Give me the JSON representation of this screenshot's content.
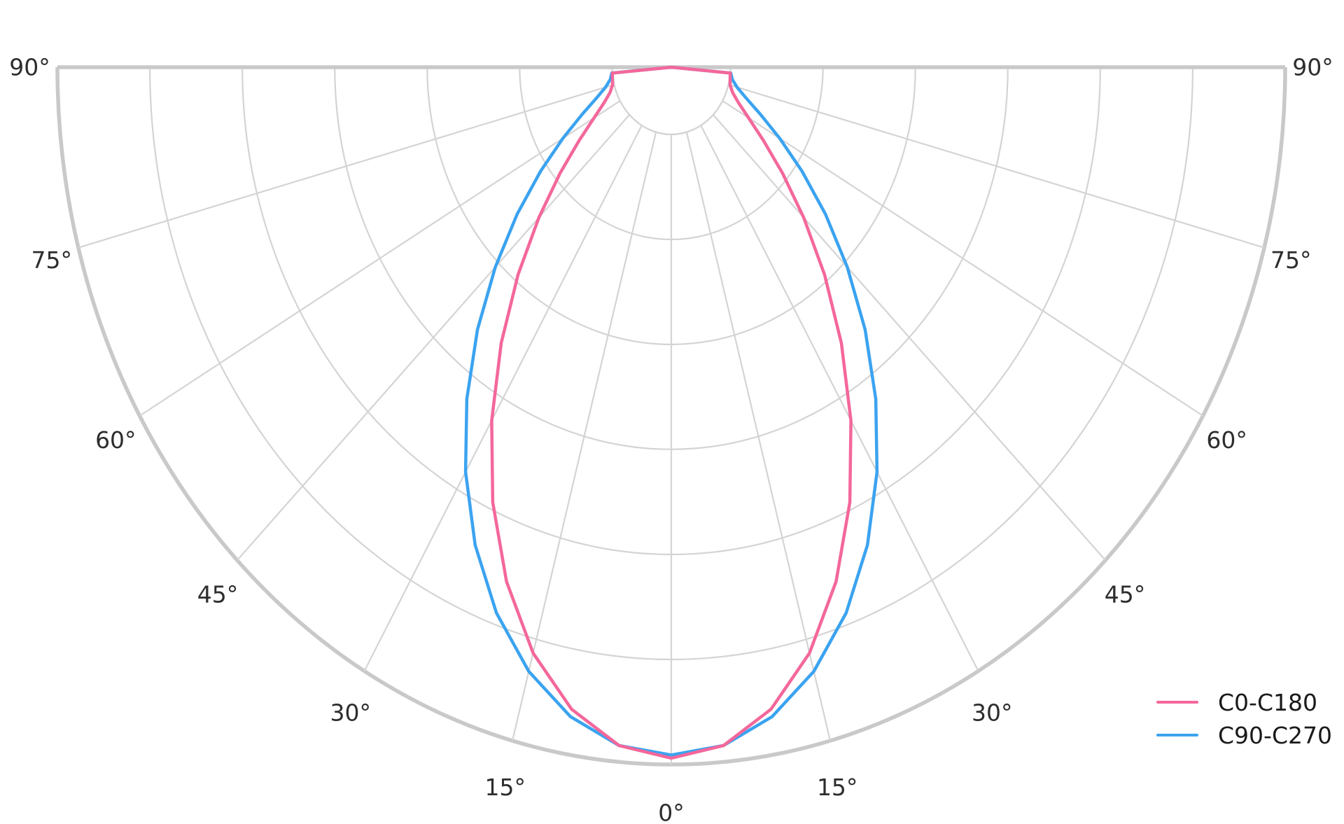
{
  "chart_data": {
    "type": "line",
    "subtype": "polar_photometric_half",
    "title": "",
    "orientation": "0-degree points down, half-polar (-90 to +90 degrees)",
    "angle_tick_step_deg": 15,
    "angle_tick_labels": [
      "0°",
      "15°",
      "30°",
      "45°",
      "60°",
      "75°",
      "90°"
    ],
    "angle_ticks_deg": [
      0,
      15,
      30,
      45,
      60,
      75,
      90
    ],
    "radial_grid": {
      "rings": 7,
      "labels_shown": false,
      "inner_hole_fraction": 0.0964,
      "grid_on": true
    },
    "angles_deg": [
      0,
      5,
      10,
      15,
      20,
      25,
      30,
      35,
      40,
      45,
      50,
      55,
      60,
      65,
      70,
      75,
      80,
      85,
      90
    ],
    "symmetric_about_zero": true,
    "curve_closes_at_origin": true,
    "series": [
      {
        "name": "C0-C180",
        "color": "#f4679b",
        "values": [
          0.99,
          0.974,
          0.928,
          0.856,
          0.762,
          0.655,
          0.541,
          0.428,
          0.323,
          0.231,
          0.155,
          0.096,
          0.054,
          0.027,
          0.011,
          0.003,
          0.001,
          0.0,
          0.0
        ]
      },
      {
        "name": "C90-C270",
        "color": "#3ba3f0",
        "values": [
          0.985,
          0.974,
          0.94,
          0.886,
          0.815,
          0.73,
          0.635,
          0.536,
          0.437,
          0.342,
          0.256,
          0.181,
          0.119,
          0.071,
          0.037,
          0.016,
          0.005,
          0.001,
          0.0
        ]
      }
    ],
    "legend": {
      "position": "lower right",
      "entries": [
        "C0-C180",
        "C90-C270"
      ]
    }
  },
  "colors": {
    "background": "#ffffff",
    "grid": "#d4d4d4",
    "boundary": "#c9c9c9",
    "tick_text": "#2d2d2d",
    "series_c0_c180": "#f4679b",
    "series_c90_c270": "#3ba3f0"
  }
}
